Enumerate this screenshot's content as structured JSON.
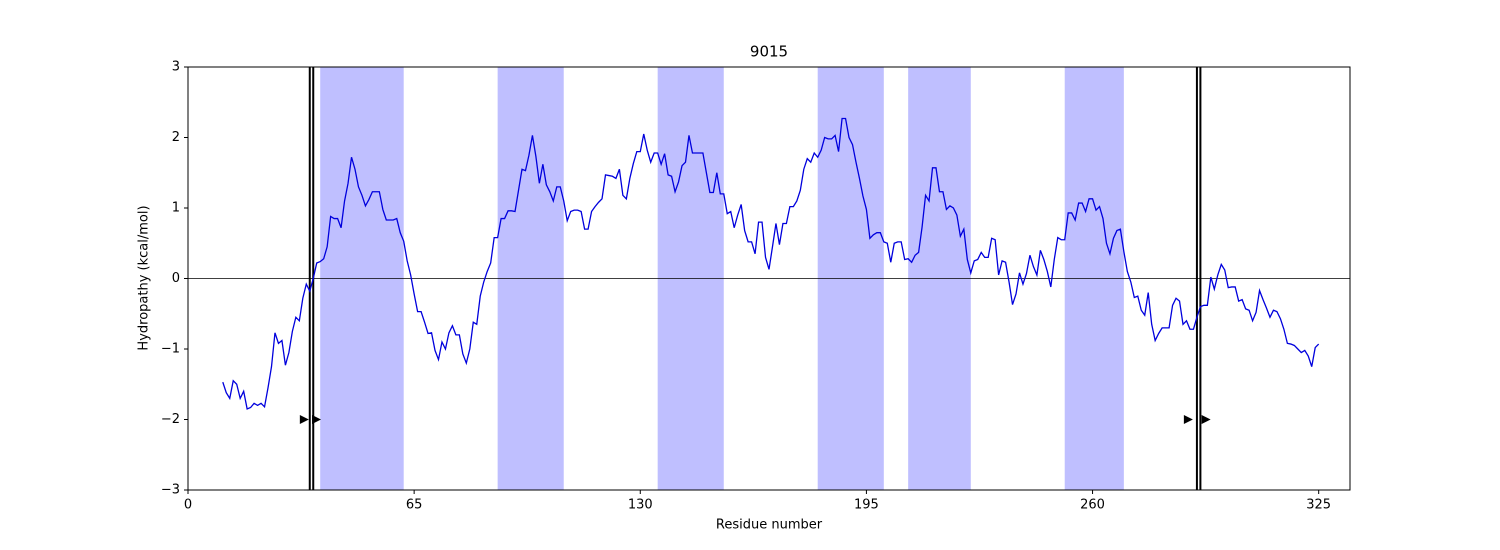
{
  "chart_data": {
    "type": "line",
    "title": "9015",
    "xlabel": "Residue number",
    "ylabel": "Hydropathy (kcal/mol)",
    "xlim": [
      0,
      334
    ],
    "ylim": [
      -3,
      3
    ],
    "xticks": [
      0,
      65,
      130,
      195,
      260,
      325
    ],
    "yticks": [
      {
        "value": -3,
        "label": "−3"
      },
      {
        "value": -2,
        "label": "−2"
      },
      {
        "value": -1,
        "label": "−1"
      },
      0,
      1,
      2,
      3
    ],
    "color": "#0000dd",
    "shade_color": "#bfbfff",
    "hline": 0,
    "shaded_regions": [
      [
        38,
        62
      ],
      [
        89,
        108
      ],
      [
        135,
        154
      ],
      [
        181,
        200
      ],
      [
        207,
        225
      ],
      [
        252,
        269
      ]
    ],
    "vlines": [
      35,
      36,
      290,
      291
    ],
    "markers": {
      "x": [
        33.3,
        36.8,
        287.4,
        292.5
      ],
      "y": [
        -2,
        -2,
        -2,
        -2
      ]
    },
    "x": [
      10,
      11,
      12,
      13,
      14,
      15,
      16,
      17,
      18,
      19,
      20,
      21,
      22,
      23,
      24,
      25,
      26,
      27,
      28,
      29,
      30,
      31,
      32,
      33,
      34,
      35,
      36,
      37,
      38,
      39,
      40,
      41,
      42,
      43,
      44,
      45,
      46,
      47,
      48,
      49,
      50,
      51,
      52,
      53,
      54,
      55,
      56,
      57,
      58,
      59,
      60,
      61,
      62,
      63,
      64,
      65,
      66,
      67,
      68,
      69,
      70,
      71,
      72,
      73,
      74,
      75,
      76,
      77,
      78,
      79,
      80,
      81,
      82,
      83,
      84,
      85,
      86,
      87,
      88,
      89,
      90,
      91,
      92,
      93,
      94,
      95,
      96,
      97,
      98,
      99,
      100,
      101,
      102,
      103,
      104,
      105,
      106,
      107,
      108,
      109,
      110,
      111,
      112,
      113,
      114,
      115,
      116,
      117,
      118,
      119,
      120,
      121,
      122,
      123,
      124,
      125,
      126,
      127,
      128,
      129,
      130,
      131,
      132,
      133,
      134,
      135,
      136,
      137,
      138,
      139,
      140,
      141,
      142,
      143,
      144,
      145,
      146,
      147,
      148,
      149,
      150,
      151,
      152,
      153,
      154,
      155,
      156,
      157,
      158,
      159,
      160,
      161,
      162,
      163,
      164,
      165,
      166,
      167,
      168,
      169,
      170,
      171,
      172,
      173,
      174,
      175,
      176,
      177,
      178,
      179,
      180,
      181,
      182,
      183,
      184,
      185,
      186,
      187,
      188,
      189,
      190,
      191,
      192,
      193,
      194,
      195,
      196,
      197,
      198,
      199,
      200,
      201,
      202,
      203,
      204,
      205,
      206,
      207,
      208,
      209,
      210,
      211,
      212,
      213,
      214,
      215,
      216,
      217,
      218,
      219,
      220,
      221,
      222,
      223,
      224,
      225,
      226,
      227,
      228,
      229,
      230,
      231,
      232,
      233,
      234,
      235,
      236,
      237,
      238,
      239,
      240,
      241,
      242,
      243,
      244,
      245,
      246,
      247,
      248,
      249,
      250,
      251,
      252,
      253,
      254,
      255,
      256,
      257,
      258,
      259,
      260,
      261,
      262,
      263,
      264,
      265,
      266,
      267,
      268,
      269,
      270,
      271,
      272,
      273,
      274,
      275,
      276,
      277,
      278,
      279,
      280,
      281,
      282,
      283,
      284,
      285,
      286,
      287,
      288,
      289,
      290,
      291,
      292,
      293,
      294,
      295,
      296,
      297,
      298,
      299,
      300,
      301,
      302,
      303,
      304,
      305,
      306,
      307,
      308,
      309,
      310,
      311,
      312,
      313,
      314,
      315,
      316,
      317,
      318,
      319,
      320,
      321,
      322,
      323,
      324,
      325
    ],
    "values": [
      -1.47,
      -1.62,
      -1.7,
      -1.45,
      -1.5,
      -1.7,
      -1.6,
      -1.85,
      -1.83,
      -1.77,
      -1.8,
      -1.77,
      -1.82,
      -1.55,
      -1.25,
      -0.77,
      -0.92,
      -0.88,
      -1.23,
      -1.05,
      -0.75,
      -0.55,
      -0.6,
      -0.28,
      -0.08,
      -0.18,
      0.0,
      0.22,
      0.24,
      0.28,
      0.45,
      0.88,
      0.85,
      0.85,
      0.72,
      1.1,
      1.35,
      1.72,
      1.55,
      1.3,
      1.18,
      1.03,
      1.12,
      1.23,
      1.23,
      1.23,
      0.98,
      0.83,
      0.83,
      0.83,
      0.85,
      0.65,
      0.53,
      0.25,
      0.05,
      -0.22,
      -0.47,
      -0.47,
      -0.62,
      -0.78,
      -0.77,
      -1.02,
      -1.15,
      -0.9,
      -1.0,
      -0.77,
      -0.67,
      -0.8,
      -0.8,
      -1.07,
      -1.2,
      -1.0,
      -0.62,
      -0.65,
      -0.25,
      -0.05,
      0.1,
      0.22,
      0.58,
      0.58,
      0.85,
      0.85,
      0.96,
      0.96,
      0.95,
      1.25,
      1.55,
      1.53,
      1.75,
      2.03,
      1.73,
      1.35,
      1.62,
      1.33,
      1.23,
      1.1,
      1.3,
      1.3,
      1.1,
      0.82,
      0.95,
      0.97,
      0.97,
      0.95,
      0.7,
      0.7,
      0.95,
      1.02,
      1.08,
      1.13,
      1.47,
      1.46,
      1.45,
      1.42,
      1.55,
      1.18,
      1.13,
      1.42,
      1.63,
      1.8,
      1.8,
      2.05,
      1.82,
      1.65,
      1.78,
      1.78,
      1.62,
      1.77,
      1.47,
      1.45,
      1.23,
      1.37,
      1.6,
      1.65,
      2.03,
      1.78,
      1.78,
      1.78,
      1.78,
      1.5,
      1.22,
      1.22,
      1.5,
      1.2,
      1.2,
      0.92,
      0.95,
      0.72,
      0.9,
      1.05,
      0.68,
      0.52,
      0.52,
      0.35,
      0.8,
      0.8,
      0.3,
      0.13,
      0.45,
      0.78,
      0.48,
      0.78,
      0.78,
      1.02,
      1.02,
      1.1,
      1.25,
      1.55,
      1.7,
      1.65,
      1.78,
      1.72,
      1.82,
      2.0,
      1.98,
      1.98,
      2.03,
      1.8,
      2.27,
      2.27,
      2.0,
      1.9,
      1.65,
      1.42,
      1.17,
      0.98,
      0.57,
      0.62,
      0.65,
      0.65,
      0.52,
      0.5,
      0.23,
      0.5,
      0.52,
      0.52,
      0.27,
      0.28,
      0.23,
      0.33,
      0.37,
      0.73,
      1.18,
      1.1,
      1.57,
      1.57,
      1.23,
      1.23,
      0.98,
      1.03,
      1.0,
      0.9,
      0.6,
      0.7,
      0.27,
      0.08,
      0.25,
      0.27,
      0.37,
      0.3,
      0.3,
      0.57,
      0.55,
      0.05,
      0.25,
      0.23,
      -0.05,
      -0.37,
      -0.22,
      0.08,
      -0.08,
      0.07,
      0.33,
      0.17,
      0.05,
      0.4,
      0.27,
      0.1,
      -0.12,
      0.27,
      0.58,
      0.55,
      0.55,
      0.93,
      0.93,
      0.83,
      1.07,
      1.07,
      0.95,
      1.13,
      1.13,
      0.97,
      1.02,
      0.85,
      0.5,
      0.35,
      0.57,
      0.68,
      0.7,
      0.38,
      0.1,
      -0.05,
      -0.27,
      -0.25,
      -0.45,
      -0.52,
      -0.2,
      -0.65,
      -0.88,
      -0.78,
      -0.7,
      -0.7,
      -0.7,
      -0.38,
      -0.28,
      -0.32,
      -0.65,
      -0.6,
      -0.72,
      -0.72,
      -0.55,
      -0.4,
      -0.38,
      -0.38,
      0.02,
      -0.15,
      0.05,
      0.2,
      0.12,
      -0.13,
      -0.12,
      -0.12,
      -0.32,
      -0.3,
      -0.43,
      -0.45,
      -0.6,
      -0.48,
      -0.17,
      -0.3,
      -0.42,
      -0.55,
      -0.45,
      -0.47,
      -0.57,
      -0.72,
      -0.92,
      -0.93,
      -0.95,
      -1.0,
      -1.05,
      -1.02,
      -1.1,
      -1.25,
      -0.98,
      -0.93
    ]
  }
}
